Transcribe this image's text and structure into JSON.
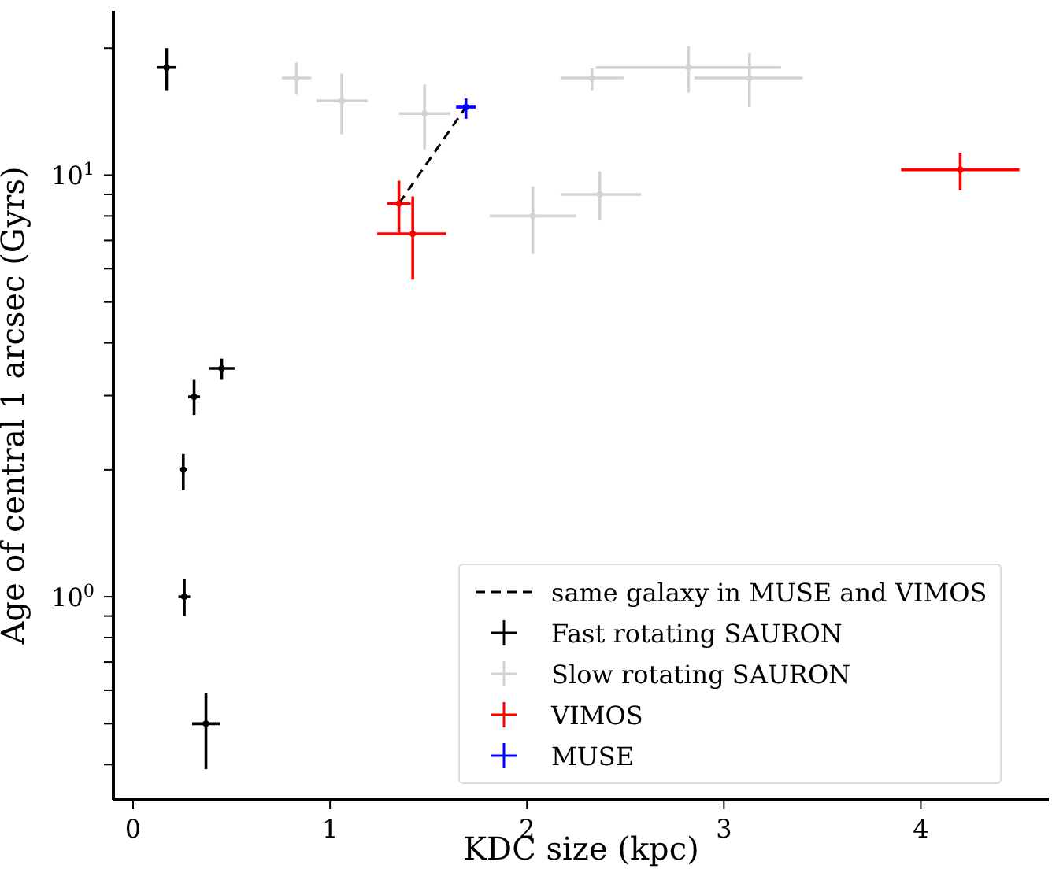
{
  "chart_data": {
    "type": "scatter",
    "xlabel": "KDC size (kpc)",
    "ylabel": "Age of central 1 arcsec (Gyrs)",
    "log": "y",
    "xlim": [
      -0.1,
      4.65
    ],
    "xticks": [
      0,
      1,
      2,
      3,
      4
    ],
    "ylim": [
      0.33,
      24.5
    ],
    "yticks": [
      {
        "value": 0.4,
        "label": null
      },
      {
        "value": 0.5,
        "label": null
      },
      {
        "value": 0.6,
        "label": null
      },
      {
        "value": 0.7,
        "label": null
      },
      {
        "value": 0.8,
        "label": null
      },
      {
        "value": 0.9,
        "label": null
      },
      {
        "value": 1,
        "label": "10$^{0}$"
      },
      {
        "value": 2,
        "label": null
      },
      {
        "value": 3,
        "label": null
      },
      {
        "value": 4,
        "label": null
      },
      {
        "value": 5,
        "label": null
      },
      {
        "value": 6,
        "label": null
      },
      {
        "value": 7,
        "label": null
      },
      {
        "value": 8,
        "label": null
      },
      {
        "value": 9,
        "label": null
      },
      {
        "value": 10,
        "label": "10$^{1}$"
      },
      {
        "value": 20,
        "label": null
      }
    ],
    "legend": "bottom right",
    "marker": "circle",
    "series": [
      {
        "name": "same galaxy in MUSE and VIMOS",
        "type": "line",
        "color": "#000000",
        "line_style": "dashed",
        "marker": "none",
        "x": [
          1.35,
          1.69
        ],
        "values": [
          8.56,
          14.5
        ]
      },
      {
        "name": "Fast rotating SAURON",
        "color": "#000000",
        "x": [
          0.17,
          0.45,
          0.31,
          0.255,
          0.26,
          0.37
        ],
        "values": [
          18.0,
          3.48,
          2.98,
          2.0,
          1.0,
          0.5
        ],
        "errors": [
          [
            15.9,
            20.0
          ],
          [
            3.27,
            3.67
          ],
          [
            2.7,
            3.27
          ],
          [
            1.79,
            2.18
          ],
          [
            0.9,
            1.1
          ],
          [
            0.39,
            0.59
          ]
        ],
        "xerrors": [
          0.05,
          0.065,
          0.03,
          0.02,
          0.03,
          0.07
        ]
      },
      {
        "name": "Slow rotating SAURON",
        "color": "#d3d3d3",
        "x": [
          0.83,
          1.06,
          1.48,
          2.33,
          2.82,
          3.13,
          2.03,
          2.37
        ],
        "values": [
          17.0,
          15.0,
          14.0,
          17.0,
          18.0,
          17.0,
          8.0,
          9.0
        ],
        "errors": [
          [
            15.5,
            18.5
          ],
          [
            12.5,
            17.4
          ],
          [
            11.5,
            16.4
          ],
          [
            15.9,
            17.9
          ],
          [
            15.7,
            20.2
          ],
          [
            14.5,
            19.5
          ],
          [
            6.5,
            9.4
          ],
          [
            7.8,
            10.2
          ]
        ],
        "xerrors": [
          0.075,
          0.13,
          0.13,
          0.16,
          [
            2.35,
            3.29
          ],
          [
            2.85,
            3.4
          ],
          [
            1.81,
            2.25
          ],
          [
            2.17,
            2.58
          ]
        ]
      },
      {
        "name": "VIMOS",
        "color": "#ff0000",
        "x": [
          1.35,
          1.42,
          4.2
        ],
        "values": [
          8.56,
          7.26,
          10.3
        ],
        "errors": [
          [
            7.3,
            9.7
          ],
          [
            5.65,
            8.9
          ],
          [
            9.2,
            11.3
          ]
        ],
        "xerrors": [
          0.06,
          [
            1.24,
            1.59
          ],
          [
            3.9,
            4.5
          ]
        ]
      },
      {
        "name": "MUSE",
        "color": "#0000ff",
        "x": [
          1.69
        ],
        "values": [
          14.5
        ],
        "errors": [
          [
            13.6,
            15.2
          ]
        ],
        "xerrors": [
          0.05
        ]
      }
    ]
  }
}
